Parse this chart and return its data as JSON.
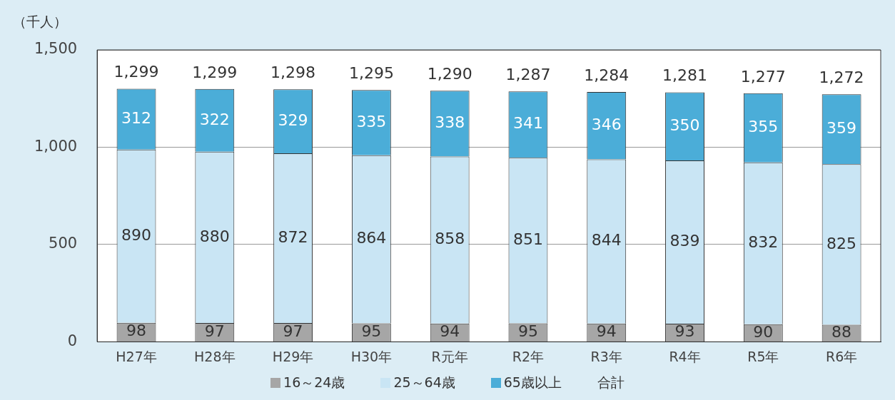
{
  "chart_data": {
    "type": "bar",
    "stacked": true,
    "ylabel": "（千人）",
    "categories": [
      "H27年",
      "H28年",
      "H29年",
      "H30年",
      "R元年",
      "R2年",
      "R3年",
      "R4年",
      "R5年",
      "R6年"
    ],
    "series": [
      {
        "name": "16～24歳",
        "color": "#a6a6a6",
        "values": [
          98,
          97,
          97,
          95,
          94,
          95,
          94,
          93,
          90,
          88
        ]
      },
      {
        "name": "25～64歳",
        "color": "#c9e5f4",
        "values": [
          890,
          880,
          872,
          864,
          858,
          851,
          844,
          839,
          832,
          825
        ]
      },
      {
        "name": "65歳以上",
        "color": "#4badd8",
        "values": [
          312,
          322,
          329,
          335,
          338,
          341,
          346,
          350,
          355,
          359
        ]
      }
    ],
    "totals": [
      "1,299",
      "1,299",
      "1,298",
      "1,295",
      "1,290",
      "1,287",
      "1,284",
      "1,281",
      "1,277",
      "1,272"
    ],
    "annotations": [
      "合計"
    ],
    "ylim": [
      0,
      1500
    ],
    "yticks": [
      {
        "value": 0,
        "label": "0"
      },
      {
        "value": 500,
        "label": "500"
      },
      {
        "value": 1000,
        "label": "1,000"
      },
      {
        "value": 1500,
        "label": "1,500"
      }
    ],
    "grid": "y",
    "legend": "bottom",
    "data_labels": true
  }
}
